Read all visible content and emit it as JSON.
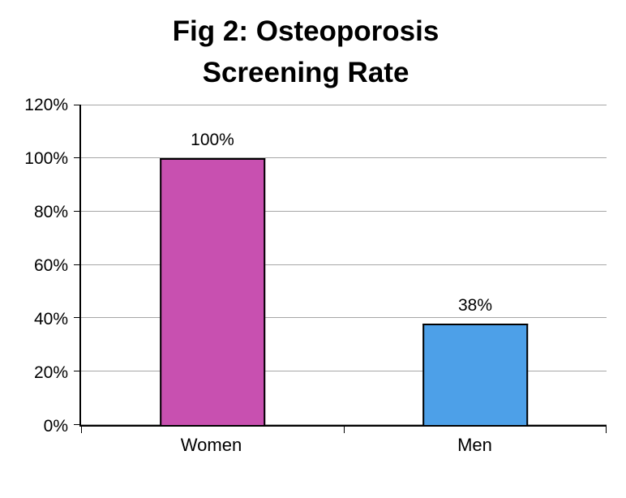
{
  "figure": {
    "title_line1": "Fig 2: Osteoporosis",
    "title_line2": "Screening Rate"
  },
  "chart_data": {
    "type": "bar",
    "title": "Fig 2: Osteoporosis Screening Rate",
    "categories": [
      "Women",
      "Men"
    ],
    "values": [
      100,
      38
    ],
    "value_labels": [
      "100%",
      "38%"
    ],
    "xlabel": "",
    "ylabel": "",
    "ylim": [
      0,
      120
    ],
    "ytick_step": 20,
    "ytick_labels": [
      "0%",
      "20%",
      "40%",
      "60%",
      "80%",
      "100%",
      "120%"
    ],
    "grid": true,
    "legend": "none",
    "bar_colors": [
      "#C850B0",
      "#4DA0E8"
    ],
    "bar_border_color": "#000000",
    "gridline_color": "#A6A6A6",
    "axis_color": "#000000",
    "background_color": "#FFFFFF"
  }
}
